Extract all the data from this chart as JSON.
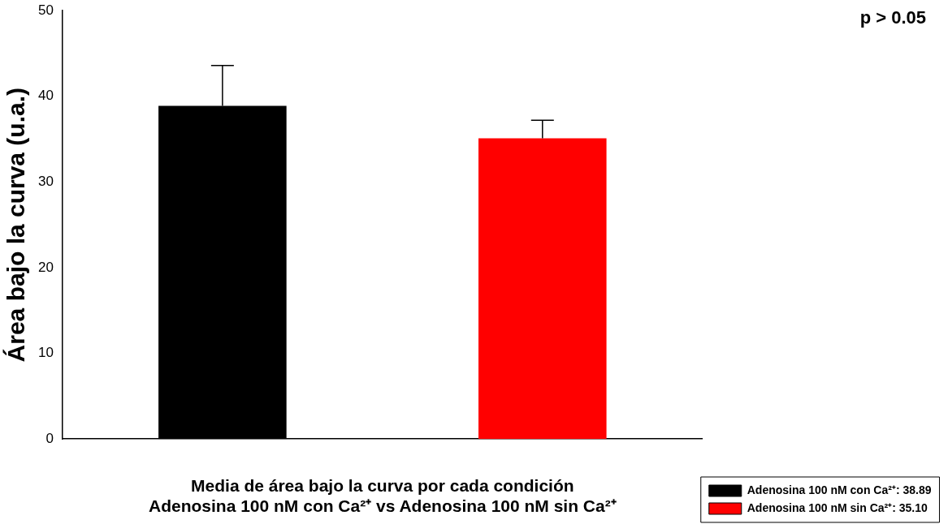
{
  "chart_data": {
    "type": "bar",
    "categories": [
      null,
      null
    ],
    "series": [
      {
        "name": "Adenosina 100 nM con Ca²⁺: 38.89",
        "color": "#000000",
        "values": [
          38.89,
          null
        ],
        "errors": [
          [
            38.89,
            43.6
          ],
          null
        ]
      },
      {
        "name": "Adenosina 100 nM sin Ca²⁺: 35.10",
        "color": "#ff0000",
        "values": [
          null,
          35.1
        ],
        "errors": [
          null,
          [
            35.1,
            37.2
          ]
        ]
      }
    ],
    "ylabel": "Área bajo la curva (u.a.)",
    "xlabel": "Media de área bajo la curva por cada condición\nAdenosina 100 nM con Ca²⁺ vs Adenosina 100 nM sin Ca²⁺",
    "annotations": [
      "p > 0.05"
    ],
    "ylim": [
      0,
      50
    ],
    "yticks": [
      0,
      10,
      20,
      30,
      40,
      50
    ],
    "grid": false,
    "legend": "bottom right"
  }
}
